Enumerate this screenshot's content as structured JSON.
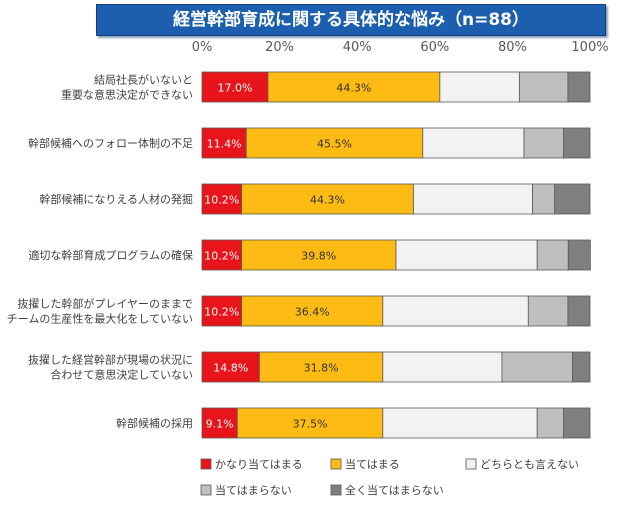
{
  "chart_data": {
    "type": "bar",
    "orientation": "horizontal",
    "stacked": true,
    "title": "経営幹部育成に関する具体的な悩み（n=88）",
    "xlim": [
      0,
      100
    ],
    "x_ticks": [
      "0%",
      "20%",
      "40%",
      "60%",
      "80%",
      "100%"
    ],
    "grid": false,
    "legend_position": "bottom",
    "categories": [
      [
        "結局社長がいないと",
        "重要な意思決定ができない"
      ],
      [
        "幹部候補へのフォロー体制の不足"
      ],
      [
        "幹部候補になりえる人材の発掘"
      ],
      [
        "適切な幹部育成プログラムの確保"
      ],
      [
        "抜擢した幹部がプレイヤーのままで",
        "チームの生産性を最大化をしていない"
      ],
      [
        "抜擢した経営幹部が現場の状況に",
        "合わせて意思決定していない"
      ],
      [
        "幹部候補の採用"
      ]
    ],
    "series": [
      {
        "name": "かなり当てはまる",
        "color": "#e8141b",
        "label_color": "#ffffff",
        "values": [
          17.0,
          11.4,
          10.2,
          10.2,
          10.2,
          14.8,
          9.1
        ],
        "labels": [
          "17.0%",
          "11.4%",
          "10.2%",
          "10.2%",
          "10.2%",
          "14.8%",
          "9.1%"
        ]
      },
      {
        "name": "当てはまる",
        "color": "#fdbb13",
        "label_color": "#333333",
        "values": [
          44.3,
          45.5,
          44.3,
          39.8,
          36.4,
          31.8,
          37.5
        ],
        "labels": [
          "44.3%",
          "45.5%",
          "44.3%",
          "39.8%",
          "36.4%",
          "31.8%",
          "37.5%"
        ]
      },
      {
        "name": "どちらとも言えない",
        "color": "#f2f2f2",
        "label_color": "#333333",
        "values": [
          20.5,
          26.1,
          30.7,
          36.4,
          37.5,
          30.7,
          39.8
        ],
        "labels": [
          "",
          "",
          "",
          "",
          "",
          "",
          ""
        ]
      },
      {
        "name": "当てはまらない",
        "color": "#bfbfbf",
        "label_color": "#333333",
        "values": [
          12.5,
          10.2,
          5.7,
          8.0,
          10.2,
          18.2,
          6.8
        ],
        "labels": [
          "",
          "",
          "",
          "",
          "",
          "",
          ""
        ]
      },
      {
        "name": "全く当てはまらない",
        "color": "#7f7f7f",
        "label_color": "#333333",
        "values": [
          5.7,
          6.8,
          9.1,
          5.7,
          5.7,
          4.5,
          6.8
        ],
        "labels": [
          "",
          "",
          "",
          "",
          "",
          "",
          ""
        ]
      }
    ]
  }
}
